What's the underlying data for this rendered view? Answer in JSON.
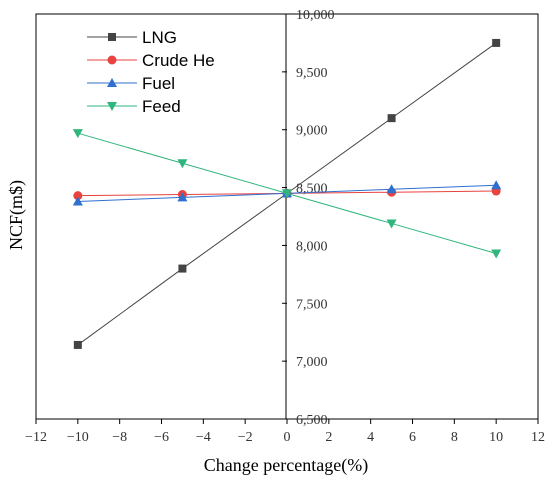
{
  "chart_data": {
    "type": "line",
    "title": "",
    "xlabel": "Change percentage(%)",
    "ylabel": "NCF(m$)",
    "xlim": [
      -12,
      12
    ],
    "ylim": [
      6500,
      10000
    ],
    "xticks": [
      -12,
      -10,
      -8,
      -6,
      -4,
      -2,
      0,
      2,
      4,
      6,
      8,
      10,
      12
    ],
    "yticks": [
      6500,
      7000,
      7500,
      8000,
      8500,
      9000,
      9500,
      10000
    ],
    "ytick_labels": [
      "6,500",
      "7,000",
      "7,500",
      "8,000",
      "8,500",
      "9,000",
      "9,500",
      "10,000"
    ],
    "x": [
      -10,
      -5,
      0,
      5,
      10
    ],
    "grid": false,
    "legend_position": "top-left",
    "series": [
      {
        "name": "LNG",
        "color": "#444444",
        "marker": "square",
        "values": [
          7140,
          7800,
          8450,
          9100,
          9750
        ]
      },
      {
        "name": "Crude He",
        "color": "#e8433f",
        "marker": "circle",
        "values": [
          8430,
          8440,
          8450,
          8460,
          8470
        ]
      },
      {
        "name": "Fuel",
        "color": "#2f6fd0",
        "marker": "triangle-up",
        "values": [
          8380,
          8415,
          8450,
          8485,
          8520
        ]
      },
      {
        "name": "Feed",
        "color": "#2fb67c",
        "marker": "triangle-down",
        "values": [
          8970,
          8710,
          8450,
          8190,
          7930
        ]
      }
    ]
  }
}
